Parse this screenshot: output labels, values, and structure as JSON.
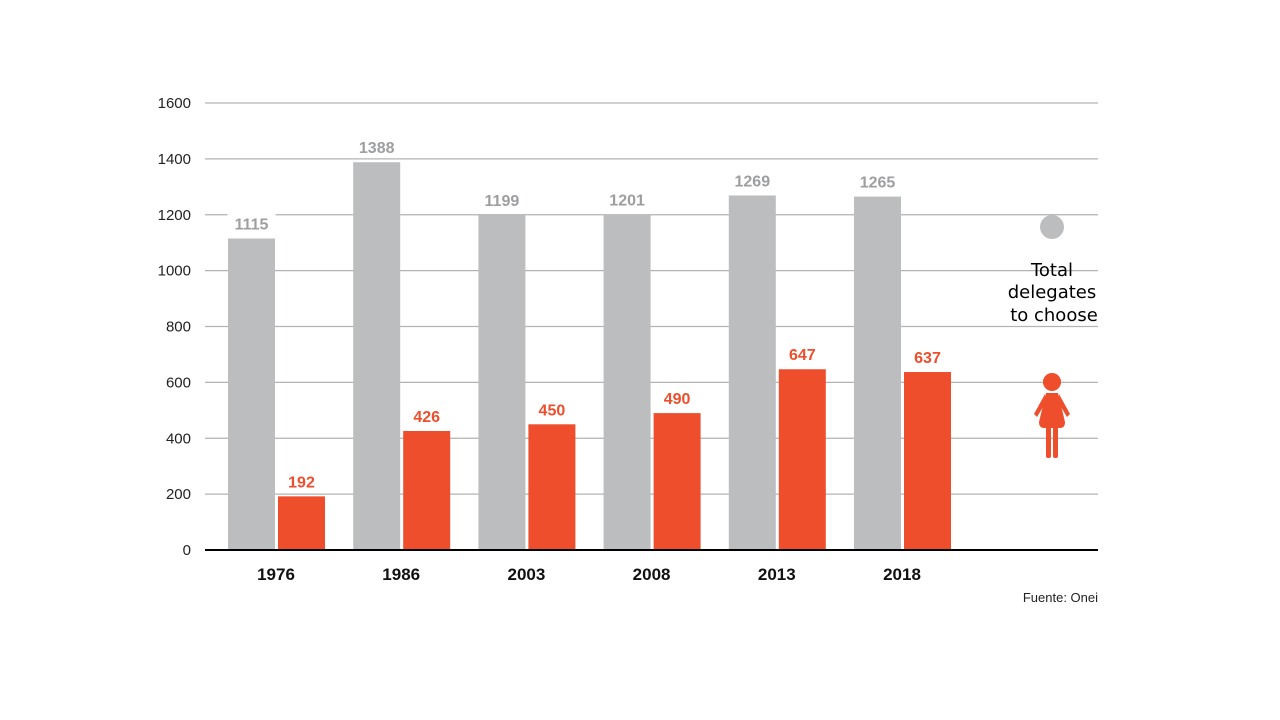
{
  "chart_data": {
    "type": "bar",
    "categories": [
      "1976",
      "1986",
      "2003",
      "2008",
      "2013",
      "2018"
    ],
    "series": [
      {
        "name": "Total delegates to choose",
        "color": "#bcbdbf",
        "label_color": "#9d9ea0",
        "values": [
          1115,
          1388,
          1199,
          1201,
          1269,
          1265
        ]
      },
      {
        "name": "",
        "color": "#ee4e2c",
        "label_color": "#ee4e2c",
        "values": [
          192,
          426,
          450,
          490,
          647,
          637
        ]
      }
    ],
    "yticks": [
      0,
      200,
      400,
      600,
      800,
      1000,
      1200,
      1400,
      1600
    ],
    "ylim": [
      0,
      1600
    ],
    "grid": true,
    "legend": [
      {
        "icon": "gray-circle-icon",
        "color": "#bcbdbf",
        "lines": [
          "Total",
          "delegates",
          "to choose"
        ]
      },
      {
        "icon": "woman-icon",
        "color": "#ee4e2c",
        "lines": []
      }
    ],
    "legend_position": "right",
    "source": "Fuente: Onei"
  }
}
